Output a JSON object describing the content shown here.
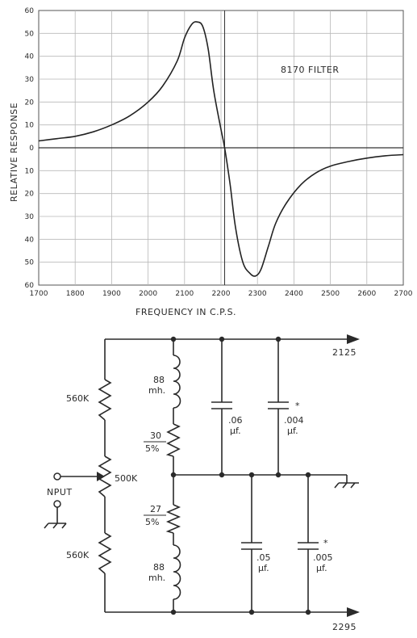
{
  "chart_data": {
    "type": "line",
    "title": "8170 FILTER",
    "xlabel": "FREQUENCY IN C.P.S.",
    "ylabel": "RELATIVE RESPONSE",
    "xlim": [
      1700,
      2700
    ],
    "ylim": [
      -60,
      60
    ],
    "grid": true,
    "x_ticks": [
      "1700",
      "1800",
      "1900",
      "2000",
      "2100",
      "2200",
      "2300",
      "2400",
      "2500",
      "2600",
      "2700"
    ],
    "y_ticks": [
      "60",
      "50",
      "40",
      "30",
      "20",
      "10",
      "0",
      "10",
      "20",
      "30",
      "40",
      "50",
      "60"
    ],
    "series": [
      {
        "x": [
          1700,
          1750,
          1800,
          1850,
          1900,
          1950,
          2000,
          2040,
          2080,
          2100,
          2120,
          2135,
          2150,
          2165,
          2180,
          2200,
          2210,
          2225,
          2240,
          2260,
          2280,
          2295,
          2310,
          2330,
          2350,
          2380,
          2420,
          2460,
          2500,
          2550,
          2600,
          2650,
          2700
        ],
        "y": [
          3,
          4,
          5,
          7,
          10,
          14,
          20,
          27,
          38,
          48,
          54,
          55,
          53,
          43,
          25,
          8,
          0,
          -16,
          -35,
          -50,
          -55,
          -56,
          -53,
          -43,
          -33,
          -24,
          -16,
          -11,
          -8,
          -6,
          -4.5,
          -3.5,
          -3
        ]
      }
    ]
  },
  "circuit": {
    "outputs": [
      "2125",
      "2295"
    ],
    "input_label": "NPUT",
    "resistors": {
      "r_top": "560K",
      "r_pot": "500K",
      "r_bottom": "560K",
      "r30": {
        "top": "30",
        "bottom": "5%"
      },
      "r27": {
        "top": "27",
        "bottom": "5%"
      }
    },
    "inductors": {
      "l_top": {
        "top": "88",
        "bottom": "mh."
      },
      "l_bottom": {
        "top": "88",
        "bottom": "mh."
      }
    },
    "capacitors": {
      "c1": {
        "top": ".06",
        "bottom": "µf."
      },
      "c2": {
        "top": ".004",
        "bottom": "µf."
      },
      "c3": {
        "top": ".05",
        "bottom": "µf."
      },
      "c4": {
        "top": ".005",
        "bottom": "µf."
      }
    },
    "marker": "*"
  }
}
